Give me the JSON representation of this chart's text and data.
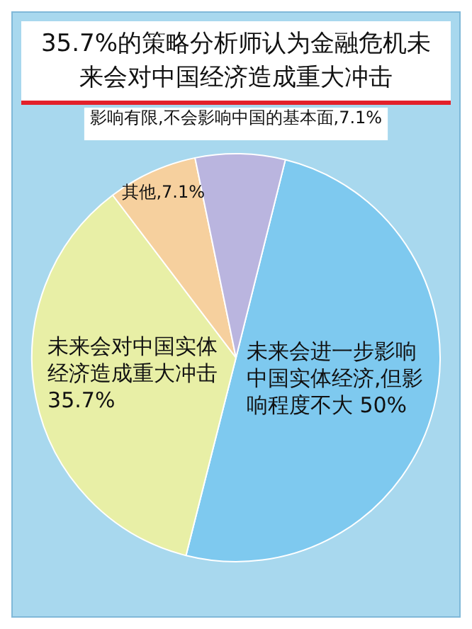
{
  "chart_data": {
    "type": "pie",
    "title": "35.7%的策略分析师认为金融危机未来会对中国经济造成重大冲击",
    "categories": [
      "未来会进一步影响中国实体经济,但影响程度不大",
      "未来会对中国实体经济造成重大冲击",
      "其他",
      "影响有限,不会影响中国的基本面"
    ],
    "values": [
      50,
      35.7,
      7.1,
      7.1
    ],
    "value_labels": [
      "50%",
      "35.7%",
      "7.1%",
      "7.1%"
    ],
    "colors": [
      "#7ec9ef",
      "#e8efa6",
      "#f6d09e",
      "#bab5df"
    ],
    "legend": false
  }
}
